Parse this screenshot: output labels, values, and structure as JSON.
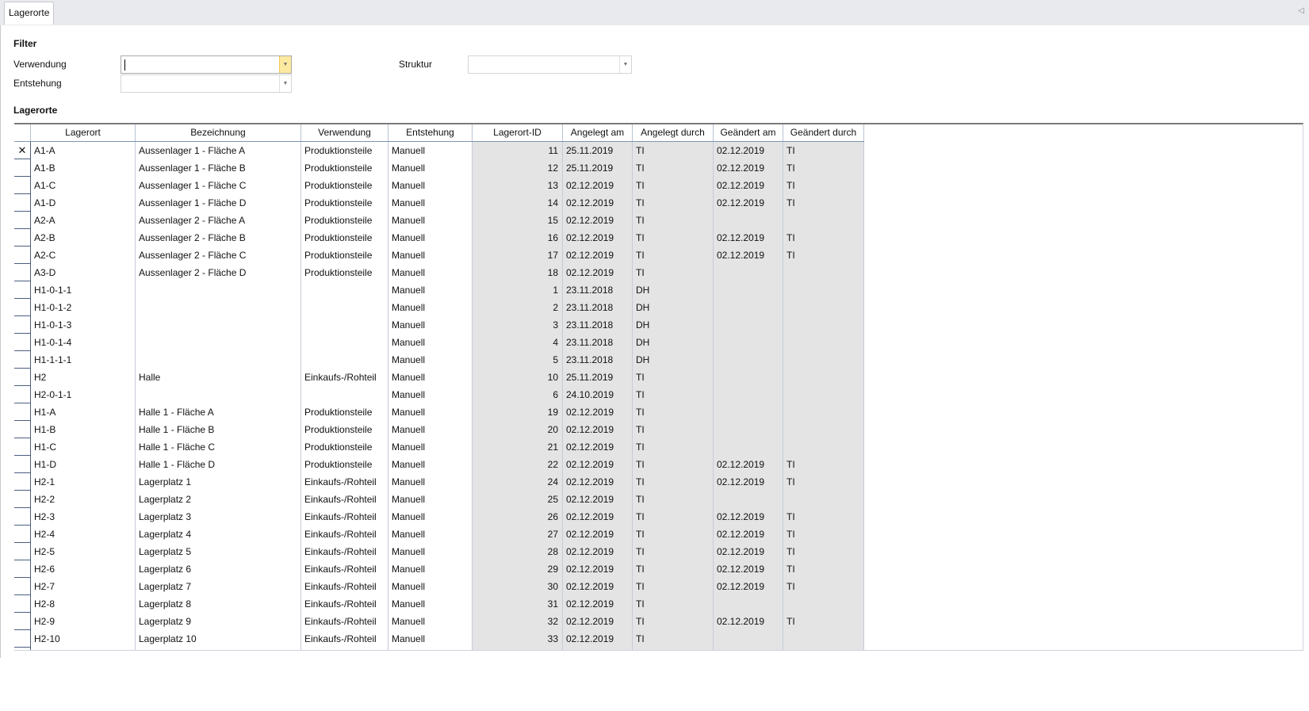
{
  "tab": {
    "label": "Lagerorte"
  },
  "filter": {
    "title": "Filter",
    "verwendung_label": "Verwendung",
    "verwendung_value": "",
    "entstehung_label": "Entstehung",
    "entstehung_value": "",
    "struktur_label": "Struktur",
    "struktur_value": ""
  },
  "grid": {
    "title": "Lagerorte",
    "columns": [
      "",
      "Lagerort",
      "Bezeichnung",
      "Verwendung",
      "Entstehung",
      "Lagerort-ID",
      "Angelegt am",
      "Angelegt durch",
      "Geändert am",
      "Geändert durch"
    ],
    "current_row_marker": "✕",
    "rows": [
      [
        "A1-A",
        "Aussenlager 1 - Fläche A",
        "Produktionsteile",
        "Manuell",
        "11",
        "25.11.2019",
        "TI",
        "02.12.2019",
        "TI"
      ],
      [
        "A1-B",
        "Aussenlager 1 - Fläche B",
        "Produktionsteile",
        "Manuell",
        "12",
        "25.11.2019",
        "TI",
        "02.12.2019",
        "TI"
      ],
      [
        "A1-C",
        "Aussenlager 1 - Fläche C",
        "Produktionsteile",
        "Manuell",
        "13",
        "02.12.2019",
        "TI",
        "02.12.2019",
        "TI"
      ],
      [
        "A1-D",
        "Aussenlager 1 - Fläche D",
        "Produktionsteile",
        "Manuell",
        "14",
        "02.12.2019",
        "TI",
        "02.12.2019",
        "TI"
      ],
      [
        "A2-A",
        "Aussenlager 2 - Fläche A",
        "Produktionsteile",
        "Manuell",
        "15",
        "02.12.2019",
        "TI",
        "",
        ""
      ],
      [
        "A2-B",
        "Aussenlager 2 - Fläche B",
        "Produktionsteile",
        "Manuell",
        "16",
        "02.12.2019",
        "TI",
        "02.12.2019",
        "TI"
      ],
      [
        "A2-C",
        "Aussenlager 2 - Fläche C",
        "Produktionsteile",
        "Manuell",
        "17",
        "02.12.2019",
        "TI",
        "02.12.2019",
        "TI"
      ],
      [
        "A3-D",
        "Aussenlager 2 - Fläche D",
        "Produktionsteile",
        "Manuell",
        "18",
        "02.12.2019",
        "TI",
        "",
        ""
      ],
      [
        "H1-0-1-1",
        "",
        "",
        "Manuell",
        "1",
        "23.11.2018",
        "DH",
        "",
        ""
      ],
      [
        "H1-0-1-2",
        "",
        "",
        "Manuell",
        "2",
        "23.11.2018",
        "DH",
        "",
        ""
      ],
      [
        "H1-0-1-3",
        "",
        "",
        "Manuell",
        "3",
        "23.11.2018",
        "DH",
        "",
        ""
      ],
      [
        "H1-0-1-4",
        "",
        "",
        "Manuell",
        "4",
        "23.11.2018",
        "DH",
        "",
        ""
      ],
      [
        "H1-1-1-1",
        "",
        "",
        "Manuell",
        "5",
        "23.11.2018",
        "DH",
        "",
        ""
      ],
      [
        "H2",
        "Halle",
        "Einkaufs-/Rohteil",
        "Manuell",
        "10",
        "25.11.2019",
        "TI",
        "",
        ""
      ],
      [
        "H2-0-1-1",
        "",
        "",
        "Manuell",
        "6",
        "24.10.2019",
        "TI",
        "",
        ""
      ],
      [
        "H1-A",
        "Halle 1 - Fläche A",
        "Produktionsteile",
        "Manuell",
        "19",
        "02.12.2019",
        "TI",
        "",
        ""
      ],
      [
        "H1-B",
        "Halle 1 - Fläche B",
        "Produktionsteile",
        "Manuell",
        "20",
        "02.12.2019",
        "TI",
        "",
        ""
      ],
      [
        "H1-C",
        "Halle 1 - Fläche C",
        "Produktionsteile",
        "Manuell",
        "21",
        "02.12.2019",
        "TI",
        "",
        ""
      ],
      [
        "H1-D",
        "Halle 1 - Fläche D",
        "Produktionsteile",
        "Manuell",
        "22",
        "02.12.2019",
        "TI",
        "02.12.2019",
        "TI"
      ],
      [
        "H2-1",
        "Lagerplatz 1",
        "Einkaufs-/Rohteil",
        "Manuell",
        "24",
        "02.12.2019",
        "TI",
        "02.12.2019",
        "TI"
      ],
      [
        "H2-2",
        "Lagerplatz 2",
        "Einkaufs-/Rohteil",
        "Manuell",
        "25",
        "02.12.2019",
        "TI",
        "",
        ""
      ],
      [
        "H2-3",
        "Lagerplatz 3",
        "Einkaufs-/Rohteil",
        "Manuell",
        "26",
        "02.12.2019",
        "TI",
        "02.12.2019",
        "TI"
      ],
      [
        "H2-4",
        "Lagerplatz 4",
        "Einkaufs-/Rohteil",
        "Manuell",
        "27",
        "02.12.2019",
        "TI",
        "02.12.2019",
        "TI"
      ],
      [
        "H2-5",
        "Lagerplatz 5",
        "Einkaufs-/Rohteil",
        "Manuell",
        "28",
        "02.12.2019",
        "TI",
        "02.12.2019",
        "TI"
      ],
      [
        "H2-6",
        "Lagerplatz 6",
        "Einkaufs-/Rohteil",
        "Manuell",
        "29",
        "02.12.2019",
        "TI",
        "02.12.2019",
        "TI"
      ],
      [
        "H2-7",
        "Lagerplatz 7",
        "Einkaufs-/Rohteil",
        "Manuell",
        "30",
        "02.12.2019",
        "TI",
        "02.12.2019",
        "TI"
      ],
      [
        "H2-8",
        "Lagerplatz 8",
        "Einkaufs-/Rohteil",
        "Manuell",
        "31",
        "02.12.2019",
        "TI",
        "",
        ""
      ],
      [
        "H2-9",
        "Lagerplatz 9",
        "Einkaufs-/Rohteil",
        "Manuell",
        "32",
        "02.12.2019",
        "TI",
        "02.12.2019",
        "TI"
      ],
      [
        "H2-10",
        "Lagerplatz 10",
        "Einkaufs-/Rohteil",
        "Manuell",
        "33",
        "02.12.2019",
        "TI",
        "",
        ""
      ]
    ]
  },
  "colors": {
    "tabstrip": "#e9eaee",
    "readonly_cell": "#e4e4e4",
    "active_dropdown": "#fdeaa0"
  }
}
